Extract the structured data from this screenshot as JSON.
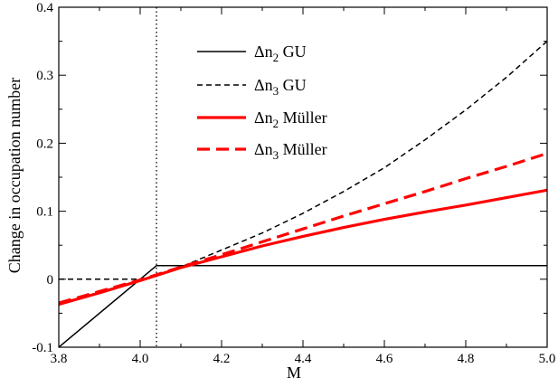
{
  "chart_data": {
    "type": "line",
    "xlabel": "M",
    "ylabel": "Change in occupation number",
    "xlim": [
      3.8,
      5.0
    ],
    "ylim": [
      -0.1,
      0.4
    ],
    "x_ticks": [
      {
        "value": 3.8,
        "label": "3.8"
      },
      {
        "value": 4.0,
        "label": "4.0"
      },
      {
        "value": 4.2,
        "label": "4.2"
      },
      {
        "value": 4.4,
        "label": "4.4"
      },
      {
        "value": 4.6,
        "label": "4.6"
      },
      {
        "value": 4.8,
        "label": "4.8"
      },
      {
        "value": 5.0,
        "label": "5.0"
      }
    ],
    "y_ticks": [
      {
        "value": -0.1,
        "label": "-0.1"
      },
      {
        "value": 0.0,
        "label": "0"
      },
      {
        "value": 0.1,
        "label": "0.1"
      },
      {
        "value": 0.2,
        "label": "0.2"
      },
      {
        "value": 0.3,
        "label": "0.3"
      },
      {
        "value": 0.4,
        "label": "0.4"
      }
    ],
    "vertical_reference_line": {
      "x": 4.04,
      "style": "dotted",
      "color": "#000000"
    },
    "grid": false,
    "legend_position": "top-center",
    "series": [
      {
        "name_prefix": "Δn",
        "name_sub": "2",
        "name_suffix": " GU",
        "color": "#000000",
        "dash": "solid",
        "width": "thin",
        "x": [
          3.8,
          4.04,
          4.05,
          5.0
        ],
        "y": [
          -0.1,
          0.02,
          0.02,
          0.02
        ]
      },
      {
        "name_prefix": "Δn",
        "name_sub": "3",
        "name_suffix": " GU",
        "color": "#000000",
        "dash": "dashed",
        "width": "thin",
        "x": [
          3.8,
          4.0,
          4.04,
          4.1,
          4.2,
          4.3,
          4.4,
          4.5,
          4.6,
          4.7,
          4.8,
          4.9,
          5.0
        ],
        "y": [
          0.0,
          0.0,
          0.005,
          0.018,
          0.043,
          0.068,
          0.097,
          0.129,
          0.164,
          0.205,
          0.249,
          0.297,
          0.35
        ]
      },
      {
        "name_prefix": "Δn",
        "name_sub": "2",
        "name_suffix": " Müller",
        "color": "#ff0000",
        "dash": "solid",
        "width": "thick",
        "x": [
          3.8,
          3.9,
          4.0,
          4.1,
          4.2,
          4.3,
          4.4,
          4.5,
          4.6,
          4.7,
          4.8,
          4.9,
          5.0
        ],
        "y": [
          -0.037,
          -0.02,
          -0.002,
          0.017,
          0.033,
          0.049,
          0.063,
          0.076,
          0.088,
          0.099,
          0.109,
          0.12,
          0.131
        ]
      },
      {
        "name_prefix": "Δn",
        "name_sub": "3",
        "name_suffix": " Müller",
        "color": "#ff0000",
        "dash": "dashed",
        "width": "thick",
        "x": [
          3.8,
          3.9,
          4.0,
          4.1,
          4.2,
          4.3,
          4.4,
          4.5,
          4.6,
          4.7,
          4.8,
          4.9,
          5.0
        ],
        "y": [
          -0.035,
          -0.018,
          -0.001,
          0.018,
          0.036,
          0.055,
          0.074,
          0.093,
          0.111,
          0.129,
          0.148,
          0.166,
          0.185
        ]
      }
    ]
  }
}
